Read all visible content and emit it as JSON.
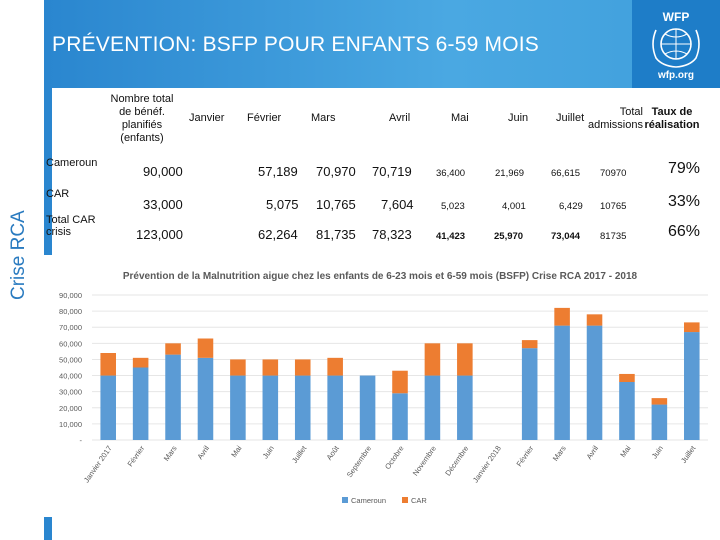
{
  "header": {
    "title": "PRÉVENTION: BSFP POUR ENFANTS 6-59 MOIS"
  },
  "logo": {
    "top": "WFP",
    "bottom": "wfp.org"
  },
  "side_label": "Crise RCA",
  "table": {
    "headers": {
      "planned": "Nombre total de bénéf. planifiés (enfants)",
      "janvier": "Janvier",
      "fevrier": "Février",
      "mars": "Mars",
      "avril": "Avril",
      "mai": "Mai",
      "juin": "Juin",
      "juillet": "Juillet",
      "total": "Total admissions",
      "taux": "Taux de réalisation"
    },
    "rows": [
      {
        "label": "Cameroun",
        "planned": "90,000",
        "fevrier": "57,189",
        "mars": "70,970",
        "avril": "70,719",
        "mai": "36,400",
        "juin": "21,969",
        "juillet": "66,615",
        "total": "70970",
        "taux": "79%"
      },
      {
        "label": "CAR",
        "planned": "33,000",
        "fevrier": "5,075",
        "mars": "10,765",
        "avril": "7,604",
        "mai": "5,023",
        "juin": "4,001",
        "juillet": "6,429",
        "total": "10765",
        "taux": "33%"
      },
      {
        "label": "Total CAR crisis",
        "planned": "123,000",
        "fevrier": "62,264",
        "mars": "81,735",
        "avril": "78,323",
        "mai": "41,423",
        "juin": "25,970",
        "juillet": "73,044",
        "total": "81735",
        "taux": "66%"
      }
    ]
  },
  "colors": {
    "cameroun": "#5b9bd5",
    "car": "#ed7d31",
    "banner": "#2a86cf"
  },
  "chart_data": {
    "type": "bar",
    "stacked": true,
    "title": "Prévention de la Malnutrition aigue chez les enfants de 6-23 mois et 6-59 mois (BSFP) Crise RCA 2017 - 2018",
    "categories": [
      "Janvier 2017",
      "Février",
      "Mars",
      "Avril",
      "Mai",
      "Juin",
      "Juillet",
      "Août",
      "Septembre",
      "Octobre",
      "Novembre",
      "Décembre",
      "Janvier 2018",
      "Février",
      "Mars",
      "Avril",
      "Mai",
      "Juin",
      "Juillet"
    ],
    "series": [
      {
        "name": "Cameroun",
        "values": [
          40000,
          45000,
          53000,
          51000,
          40000,
          40000,
          40000,
          40000,
          40000,
          29000,
          40000,
          40000,
          0,
          57000,
          71000,
          71000,
          36000,
          22000,
          67000
        ]
      },
      {
        "name": "CAR",
        "values": [
          14000,
          6000,
          7000,
          12000,
          10000,
          10000,
          10000,
          11000,
          0,
          14000,
          20000,
          20000,
          0,
          5000,
          11000,
          7000,
          5000,
          4000,
          6000
        ]
      }
    ],
    "yticks": [
      "-",
      "10,000",
      "20,000",
      "30,000",
      "40,000",
      "50,000",
      "60,000",
      "70,000",
      "80,000",
      "90,000"
    ],
    "ylim": [
      0,
      90000
    ],
    "legend": [
      "Cameroun",
      "CAR"
    ],
    "legend_position": "bottom"
  }
}
